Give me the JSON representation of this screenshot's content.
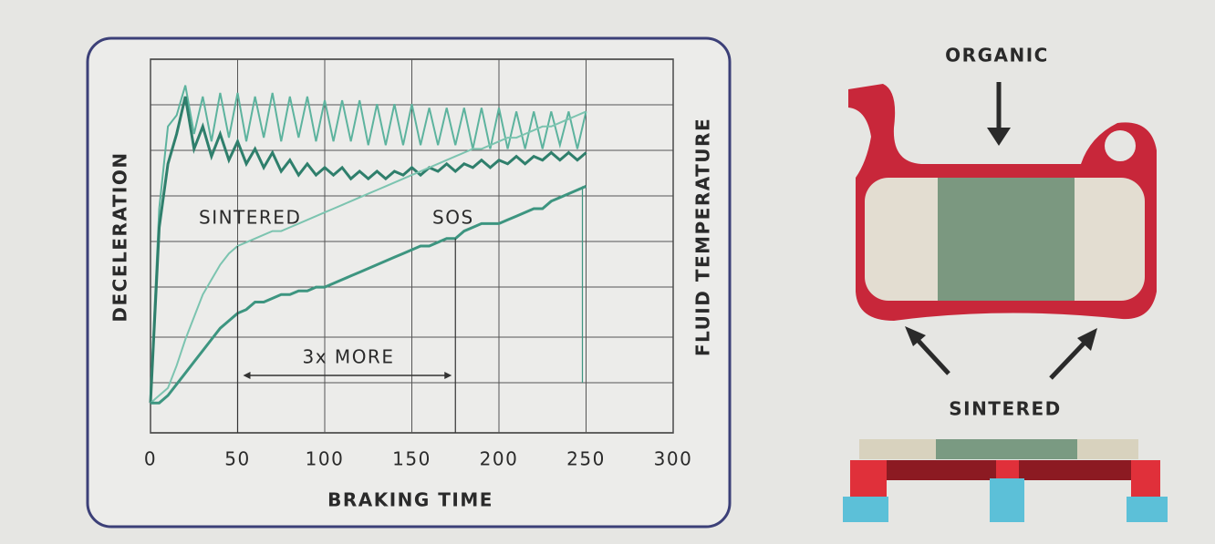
{
  "chart_data": {
    "type": "line",
    "xlabel": "BRAKING TIME",
    "ylabel": "DECELERATION",
    "y2label": "FLUID TEMPERATURE",
    "x": [
      0,
      5,
      10,
      15,
      20,
      25,
      30,
      35,
      40,
      45,
      50,
      55,
      60,
      65,
      70,
      75,
      80,
      85,
      90,
      95,
      100,
      105,
      110,
      115,
      120,
      125,
      130,
      135,
      140,
      145,
      150,
      155,
      160,
      165,
      170,
      175,
      180,
      185,
      190,
      195,
      200,
      205,
      210,
      215,
      220,
      225,
      230,
      235,
      240,
      245,
      250
    ],
    "xlim": [
      0,
      300
    ],
    "xticks": [
      0,
      50,
      100,
      150,
      200,
      250,
      300
    ],
    "ylim": [
      0,
      100
    ],
    "grid": true,
    "series": [
      {
        "color": "#5db39e",
        "values": [
          10,
          60,
          82,
          85,
          93,
          80,
          90,
          78,
          91,
          79,
          91,
          78,
          90,
          79,
          91,
          78,
          90,
          79,
          90,
          78,
          89,
          78,
          89,
          78,
          89,
          77,
          88,
          77,
          88,
          77,
          88,
          77,
          87,
          77,
          87,
          77,
          87,
          76,
          87,
          76,
          87,
          76,
          86,
          76,
          86,
          76,
          86,
          77,
          86,
          76,
          86
        ]
      },
      {
        "color": "#2f7f6c",
        "values": [
          8,
          55,
          72,
          80,
          90,
          76,
          82,
          74,
          80,
          73,
          78,
          72,
          76,
          71,
          75,
          70,
          73,
          69,
          72,
          69,
          71,
          69,
          71,
          68,
          70,
          68,
          70,
          68,
          70,
          69,
          71,
          69,
          71,
          70,
          72,
          70,
          72,
          71,
          73,
          71,
          73,
          72,
          74,
          72,
          74,
          73,
          75,
          73,
          75,
          73,
          75
        ]
      },
      {
        "color": "#7cc4b0",
        "values": [
          8,
          10,
          12,
          18,
          25,
          31,
          37,
          41,
          45,
          48,
          50,
          51,
          52,
          53,
          54,
          54,
          55,
          56,
          57,
          58,
          59,
          60,
          61,
          62,
          63,
          64,
          65,
          66,
          67,
          68,
          69,
          70,
          71,
          72,
          73,
          74,
          75,
          76,
          76,
          77,
          78,
          79,
          79,
          80,
          81,
          82,
          82,
          83,
          84,
          85,
          86
        ]
      },
      {
        "color": "#3d9580",
        "values": [
          8,
          8,
          10,
          13,
          16,
          19,
          22,
          25,
          28,
          30,
          32,
          33,
          35,
          35,
          36,
          37,
          37,
          38,
          38,
          39,
          39,
          40,
          41,
          42,
          43,
          44,
          45,
          46,
          47,
          48,
          49,
          50,
          50,
          51,
          52,
          52,
          54,
          55,
          56,
          56,
          56,
          57,
          58,
          59,
          60,
          60,
          62,
          63,
          64,
          65,
          66
        ]
      }
    ],
    "annotations": [
      {
        "text": "SINTERED"
      },
      {
        "text": "SOS"
      },
      {
        "text": "3x MORE"
      }
    ]
  },
  "diagram": {
    "labels": [
      "ORGANIC",
      "SINTERED"
    ]
  }
}
